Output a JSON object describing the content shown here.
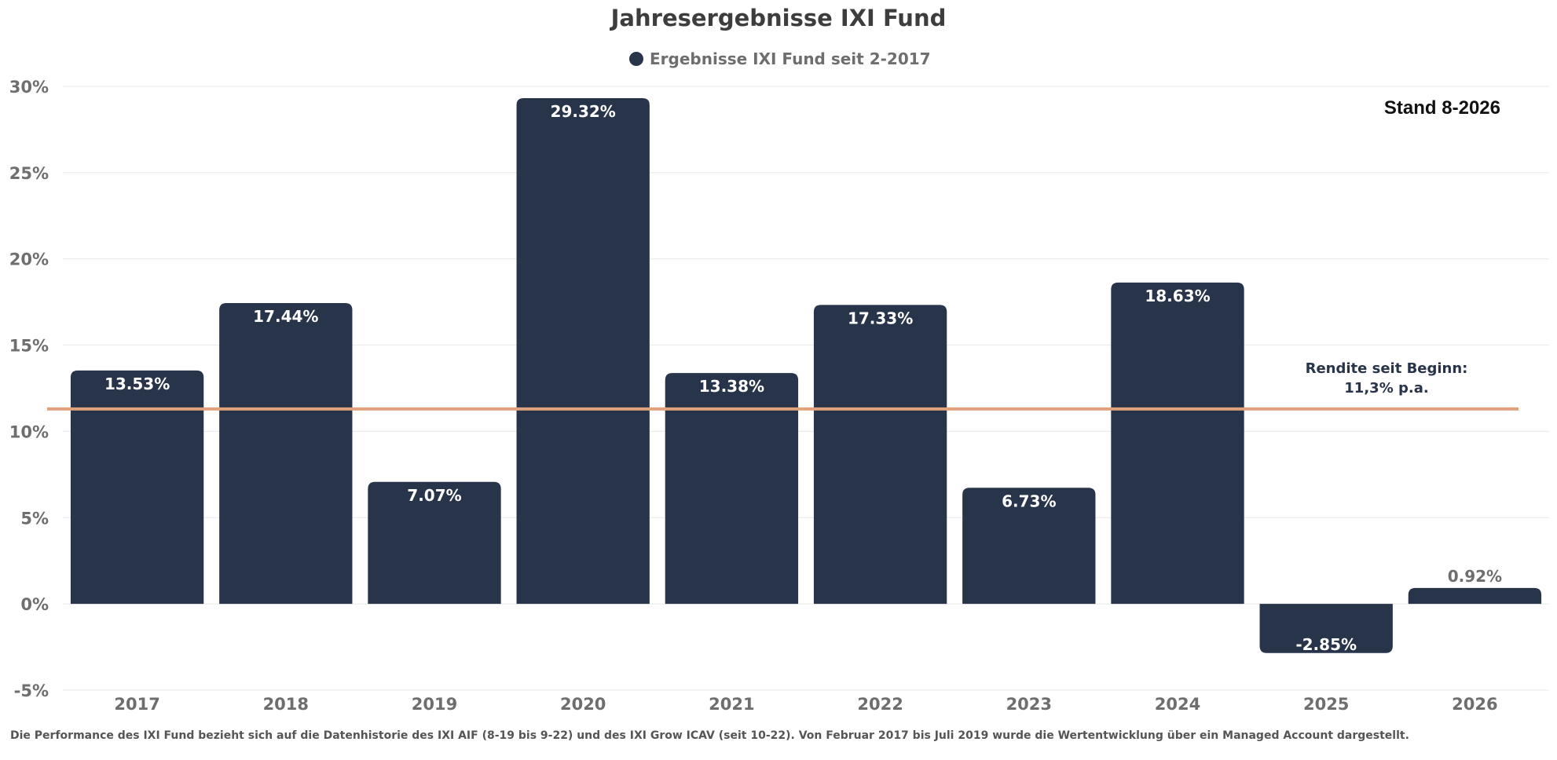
{
  "chart_data": {
    "type": "bar",
    "title": "Jahresergebnisse IXI Fund",
    "series": [
      {
        "name": "Ergebnisse IXI Fund seit 2-2017",
        "values": [
          13.53,
          17.44,
          7.07,
          29.32,
          13.38,
          17.33,
          6.73,
          18.63,
          -2.85,
          0.92
        ],
        "labels": [
          "13.53%",
          "17.44%",
          "7.07%",
          "29.32%",
          "13.38%",
          "17.33%",
          "6.73%",
          "18.63%",
          "-2.85%",
          "0.92%"
        ]
      }
    ],
    "categories": [
      "2017",
      "2018",
      "2019",
      "2020",
      "2021",
      "2022",
      "2023",
      "2024",
      "2025",
      "2026"
    ],
    "ylim": [
      -5,
      30
    ],
    "yticks": [
      -5,
      0,
      5,
      10,
      15,
      20,
      25,
      30
    ],
    "ytick_labels": [
      "-5%",
      "0%",
      "5%",
      "10%",
      "15%",
      "20%",
      "25%",
      "30%"
    ],
    "reference_line": {
      "value": 11.3,
      "label_line1": "Rendite seit Beginn:",
      "label_line2": "11,3% p.a."
    },
    "annotation": "Stand 8-2026",
    "grid": true,
    "legend_position": "top-center",
    "colors": {
      "bar": "#273449",
      "reference_line": "#e0a27c",
      "grid": "#e8e8e8"
    }
  },
  "footnote": "Die Performance des IXI Fund bezieht sich auf die Datenhistorie des IXI AIF (8-19 bis 9-22) und des IXI Grow ICAV (seit 10-22). Von Februar 2017 bis Juli 2019 wurde die Wertentwicklung über ein Managed Account dargestellt."
}
